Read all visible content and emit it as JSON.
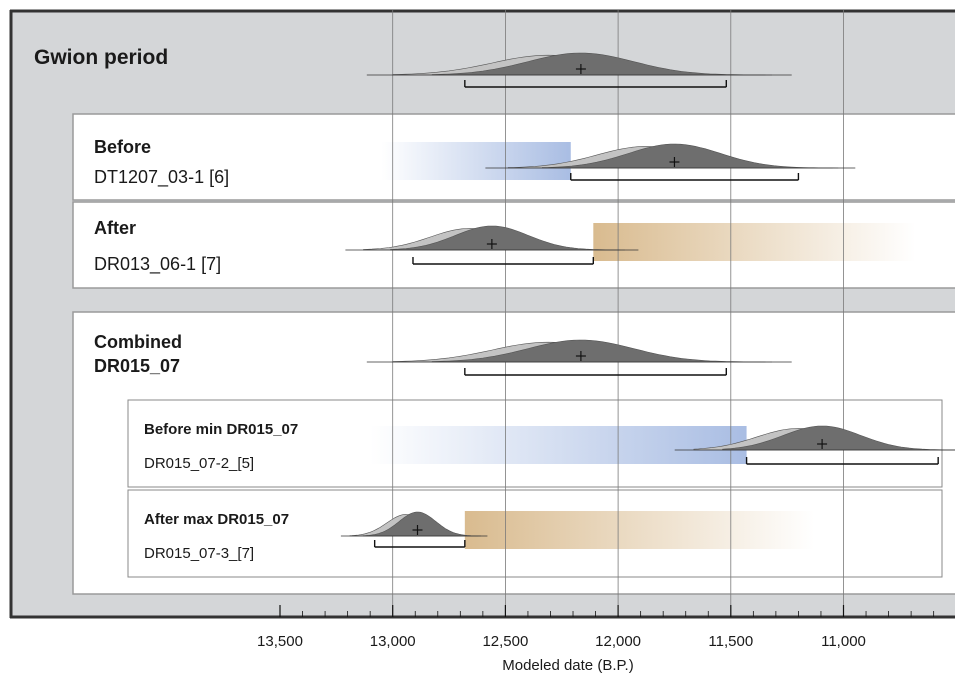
{
  "chart_data": {
    "type": "oxcal-multiplot",
    "xlabel": "Modeled date (B.P.)",
    "x_range": [
      13500,
      10550
    ],
    "x_ticks": [
      "13,500",
      "13,000",
      "12,500",
      "12,000",
      "11,500",
      "11,000"
    ],
    "x_tick_values": [
      13500,
      13000,
      12500,
      12000,
      11500,
      11000
    ],
    "gridlines": [
      13000,
      12500,
      12000,
      11500,
      11000
    ],
    "colors": {
      "panel_grey": "#d4d6d8",
      "prior": "#c3c3c3",
      "posterior": "#6e6e6e",
      "before_gradient": "#a9bde3",
      "after_gradient": "#d9bb8f"
    },
    "sections": [
      {
        "title": "Gwion period",
        "range_95": [
          12680,
          11520
        ],
        "mean": 12165,
        "prior_span": [
          13180,
          11200
        ],
        "posterior_span": [
          12900,
          11200
        ]
      },
      {
        "title": "Before",
        "sample": "DT1207_03-1 [6]",
        "constraint": "before",
        "gradient_from": 13050,
        "gradient_to": 12210,
        "range_95": [
          12210,
          11200
        ],
        "mean": 11750
      },
      {
        "title": "After",
        "sample": "DR013_06-1 [7]",
        "constraint": "after",
        "gradient_from": 12110,
        "gradient_to": 10680,
        "range_95": [
          12910,
          12110
        ],
        "mean": 12560
      },
      {
        "title": "Combined",
        "subtitle": "DR015_07",
        "range_95": [
          12680,
          11520
        ],
        "mean": 12165
      },
      {
        "title": "Before min DR015_07",
        "sample": "DR015_07-2_[5]",
        "constraint": "before",
        "gradient_from": 13100,
        "gradient_to": 11430,
        "range_95": [
          11430,
          10580
        ],
        "mean": 11095
      },
      {
        "title": "After max DR015_07",
        "sample": "DR015_07-3_[7]",
        "constraint": "after",
        "gradient_from": 12680,
        "gradient_to": 11130,
        "range_95": [
          13080,
          12680
        ],
        "mean": 12890
      }
    ]
  }
}
